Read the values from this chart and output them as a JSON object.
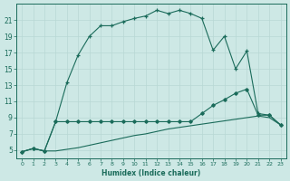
{
  "bg_color": "#cde8e5",
  "grid_color": "#b8d8d4",
  "line_color": "#1a6b5a",
  "xlabel": "Humidex (Indice chaleur)",
  "xlim": [
    -0.5,
    23.5
  ],
  "ylim": [
    4.0,
    23.0
  ],
  "xticks": [
    0,
    1,
    2,
    3,
    4,
    5,
    6,
    7,
    8,
    9,
    10,
    11,
    12,
    13,
    14,
    15,
    16,
    17,
    18,
    19,
    20,
    21,
    22,
    23
  ],
  "yticks": [
    5,
    7,
    9,
    11,
    13,
    15,
    17,
    19,
    21
  ],
  "curve1_x": [
    0,
    1,
    2,
    3,
    4,
    5,
    6,
    7,
    8,
    9,
    10,
    11,
    12,
    13,
    14,
    15,
    16,
    17,
    18,
    19,
    20,
    21,
    22,
    23
  ],
  "curve1_y": [
    4.8,
    5.2,
    4.9,
    8.5,
    13.3,
    16.7,
    19.0,
    20.3,
    20.3,
    20.8,
    21.2,
    21.5,
    22.2,
    21.8,
    22.2,
    21.8,
    21.2,
    17.3,
    19.0,
    15.0,
    17.2,
    9.5,
    9.3,
    8.1
  ],
  "curve2_x": [
    0,
    1,
    2,
    3,
    4,
    5,
    6,
    7,
    8,
    9,
    10,
    11,
    12,
    13,
    14,
    15,
    16,
    17,
    18,
    19,
    20,
    21,
    22,
    23
  ],
  "curve2_y": [
    4.8,
    5.2,
    4.9,
    8.5,
    8.5,
    8.5,
    8.5,
    8.5,
    8.5,
    8.5,
    8.5,
    8.5,
    8.5,
    8.5,
    8.5,
    8.5,
    9.5,
    10.5,
    11.2,
    12.0,
    12.5,
    9.3,
    9.3,
    8.1
  ],
  "curve3_x": [
    0,
    1,
    2,
    3,
    4,
    5,
    6,
    7,
    8,
    9,
    10,
    11,
    12,
    13,
    14,
    15,
    16,
    17,
    18,
    19,
    20,
    21,
    22,
    23
  ],
  "curve3_y": [
    4.8,
    5.2,
    4.9,
    4.9,
    5.1,
    5.3,
    5.6,
    5.9,
    6.2,
    6.5,
    6.8,
    7.0,
    7.3,
    7.6,
    7.8,
    8.0,
    8.2,
    8.4,
    8.6,
    8.8,
    9.0,
    9.2,
    9.0,
    8.1
  ]
}
